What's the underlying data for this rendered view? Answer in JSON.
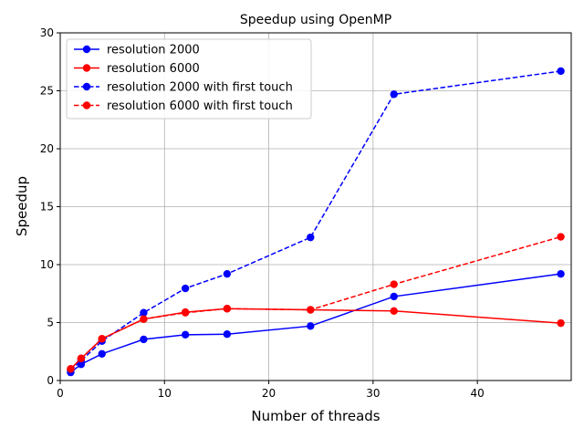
{
  "chart_data": {
    "type": "line",
    "title": "Speedup using OpenMP",
    "xlabel": "Number of threads",
    "ylabel": "Speedup",
    "xlim": [
      0,
      49
    ],
    "ylim": [
      0,
      30
    ],
    "xticks": [
      0,
      10,
      20,
      30,
      40
    ],
    "yticks": [
      0,
      5,
      10,
      15,
      20,
      25,
      30
    ],
    "grid": true,
    "legend_position": "top-left",
    "series": [
      {
        "name": "resolution 2000",
        "color": "#0000ff",
        "linestyle": "solid",
        "x": [
          1,
          2,
          4,
          8,
          12,
          16,
          24,
          32,
          48
        ],
        "y": [
          0.7,
          1.4,
          2.3,
          3.55,
          3.95,
          4.0,
          4.7,
          7.25,
          9.2
        ]
      },
      {
        "name": "resolution 6000",
        "color": "#ff0000",
        "linestyle": "solid",
        "x": [
          1,
          2,
          4,
          8,
          12,
          16,
          24,
          32,
          48
        ],
        "y": [
          1.0,
          1.9,
          3.6,
          5.3,
          5.9,
          6.2,
          6.1,
          6.0,
          4.95
        ]
      },
      {
        "name": "resolution 2000 with first touch",
        "color": "#0000ff",
        "linestyle": "dashed",
        "x": [
          1,
          2,
          4,
          8,
          12,
          16,
          24,
          32,
          48
        ],
        "y": [
          0.9,
          1.7,
          3.4,
          5.85,
          7.95,
          9.2,
          12.35,
          24.7,
          26.7
        ]
      },
      {
        "name": "resolution 6000 with first touch",
        "color": "#ff0000",
        "linestyle": "dashed",
        "x": [
          1,
          2,
          4,
          8,
          12,
          16,
          24,
          32,
          48
        ],
        "y": [
          1.0,
          1.9,
          3.6,
          5.3,
          5.85,
          6.2,
          6.1,
          8.3,
          12.4
        ]
      }
    ]
  }
}
